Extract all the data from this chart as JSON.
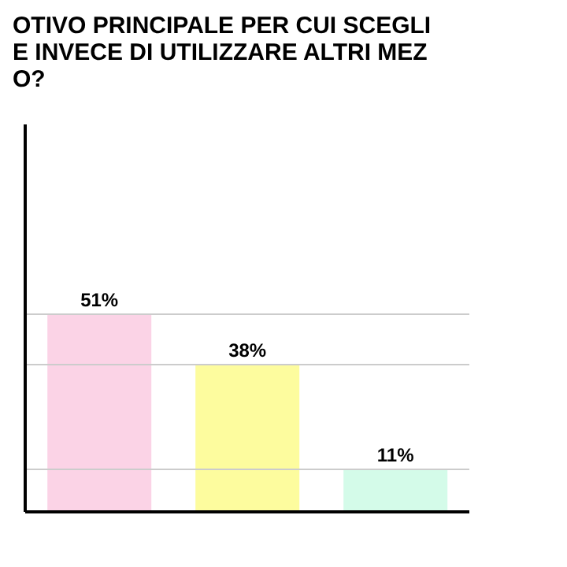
{
  "chart_data": {
    "type": "bar",
    "title": "OTIVO PRINCIPALE PER CUI SCEGLI\nE INVECE DI UTILIZZARE ALTRI MEZ\nO?",
    "categories": [
      null,
      null,
      null
    ],
    "values": [
      51,
      38,
      11
    ],
    "colors": [
      "#fbd3e6",
      "#fdfc9e",
      "#d4fbe9"
    ],
    "value_labels": [
      "51%",
      "38%",
      "11%"
    ],
    "ylim": [
      0,
      100
    ],
    "ref_lines": [
      {
        "axis": "y",
        "value": 51,
        "color": "#cccccc"
      },
      {
        "axis": "y",
        "value": 38,
        "color": "#cccccc"
      },
      {
        "axis": "y",
        "value": 11,
        "color": "#cccccc"
      }
    ]
  }
}
